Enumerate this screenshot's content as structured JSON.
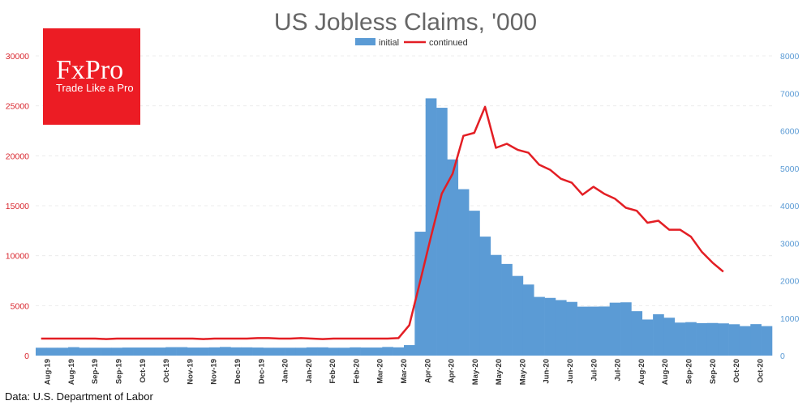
{
  "chart_data": {
    "type": "bar+line",
    "title": "US Jobless Claims, '000",
    "source": "Data: U.S. Department of Labor",
    "legend": [
      {
        "name": "initial",
        "color": "#5b9bd5",
        "kind": "bar"
      },
      {
        "name": "continued",
        "color": "#e31e24",
        "kind": "line"
      }
    ],
    "legend_position": "top-center",
    "grid": true,
    "left_axis": {
      "min": 0,
      "max": 30000,
      "ticks": [
        "0",
        "5000",
        "10000",
        "15000",
        "20000",
        "25000",
        "30000"
      ],
      "color": "#d9262e",
      "series": "continued"
    },
    "right_axis": {
      "min": 0,
      "max": 8000,
      "ticks": [
        "0",
        "1000",
        "2000",
        "3000",
        "4000",
        "5000",
        "6000",
        "7000",
        "8000"
      ],
      "color": "#5b9bd5",
      "series": "initial"
    },
    "x_labels": [
      "Aug-19",
      "Aug-19",
      "Sep-19",
      "Sep-19",
      "Oct-19",
      "Oct-19",
      "Nov-19",
      "Nov-19",
      "Dec-19",
      "Dec-19",
      "Jan-20",
      "Jan-20",
      "Feb-20",
      "Feb-20",
      "Mar-20",
      "Mar-20",
      "Apr-20",
      "Apr-20",
      "May-20",
      "May-20",
      "May-20",
      "Jun-20",
      "Jun-20",
      "Jul-20",
      "Jul-20",
      "Aug-20",
      "Aug-20",
      "Sep-20",
      "Sep-20",
      "Oct-20",
      "Oct-20"
    ],
    "series": [
      {
        "name": "initial",
        "axis": "right",
        "values": [
          210,
          210,
          210,
          225,
          210,
          210,
          210,
          210,
          215,
          215,
          215,
          215,
          225,
          225,
          215,
          215,
          220,
          230,
          220,
          220,
          215,
          210,
          210,
          210,
          210,
          220,
          220,
          210,
          210,
          220,
          215,
          215,
          230,
          220,
          280,
          3307,
          6867,
          6615,
          5237,
          4442,
          3867,
          3176,
          2687,
          2446,
          2126,
          1897,
          1566,
          1540,
          1482,
          1433,
          1306,
          1307,
          1310,
          1413,
          1422,
          1186,
          963,
          1104,
          1011,
          881,
          893,
          866,
          870,
          860,
          837,
          787,
          840,
          787
        ],
        "units": "thousands"
      },
      {
        "name": "continued",
        "axis": "left",
        "values": [
          1700,
          1700,
          1700,
          1700,
          1700,
          1700,
          1650,
          1700,
          1700,
          1700,
          1700,
          1700,
          1700,
          1700,
          1700,
          1650,
          1700,
          1700,
          1700,
          1700,
          1750,
          1750,
          1700,
          1700,
          1750,
          1700,
          1650,
          1700,
          1700,
          1700,
          1700,
          1700,
          1700,
          1750,
          3050,
          7400,
          11900,
          16200,
          18200,
          22000,
          22300,
          24900,
          20800,
          21200,
          20600,
          20300,
          19100,
          18600,
          17700,
          17300,
          16100,
          16900,
          16200,
          15700,
          14800,
          14500,
          13300,
          13500,
          12600,
          12600,
          11900,
          10400,
          9300,
          8400
        ],
        "units": "thousands"
      }
    ]
  },
  "logo": {
    "name": "FxPro",
    "tagline": "Trade Like a Pro",
    "color": "#ec1c24"
  }
}
